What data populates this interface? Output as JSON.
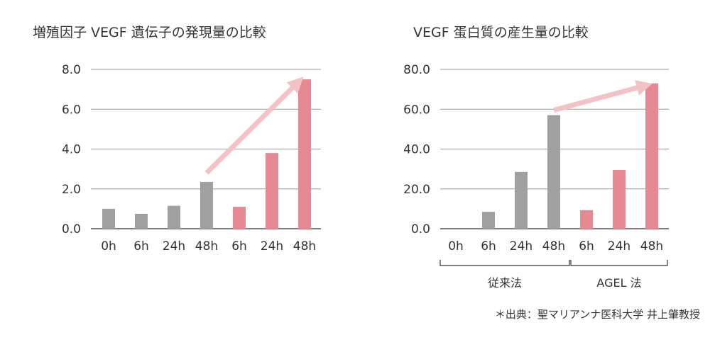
{
  "chart_data": [
    {
      "type": "bar",
      "title": "増殖因子 VEGF 遺伝子の発現量の比較",
      "categories": [
        "0h",
        "6h",
        "24h",
        "48h",
        "6h",
        "24h",
        "48h"
      ],
      "values": [
        1.0,
        0.75,
        1.15,
        2.35,
        1.1,
        3.8,
        7.5
      ],
      "bar_colors": [
        "#a0a0a0",
        "#a0a0a0",
        "#a0a0a0",
        "#a0a0a0",
        "#e58a92",
        "#e58a92",
        "#e58a92"
      ],
      "ylim": [
        0,
        8
      ],
      "yticks": [
        "0.0",
        "2.0",
        "4.0",
        "6.0",
        "8.0"
      ],
      "ytick_values": [
        0,
        2,
        4,
        6,
        8
      ],
      "grid": true,
      "trend_arrow": {
        "from": [
          3,
          2.8
        ],
        "to": [
          6,
          7.4
        ],
        "color": "#f2c2c6"
      }
    },
    {
      "type": "bar",
      "title": "VEGF 蛋白質の産生量の比較",
      "categories": [
        "0h",
        "6h",
        "24h",
        "48h",
        "6h",
        "24h",
        "48h"
      ],
      "values": [
        0,
        8.5,
        28.5,
        57,
        9.3,
        29.5,
        73
      ],
      "bar_colors": [
        "#a0a0a0",
        "#a0a0a0",
        "#a0a0a0",
        "#a0a0a0",
        "#e58a92",
        "#e58a92",
        "#e58a92"
      ],
      "ylim": [
        0,
        80
      ],
      "yticks": [
        "0.0",
        "20.0",
        "40.0",
        "60.0",
        "80.0"
      ],
      "ytick_values": [
        0,
        20,
        40,
        60,
        80
      ],
      "grid": true,
      "groups": [
        {
          "label": "従来法",
          "start": 0,
          "end": 3
        },
        {
          "label": "AGEL 法",
          "start": 4,
          "end": 6
        }
      ],
      "trend_arrow": {
        "from": [
          3,
          59.5
        ],
        "to": [
          6,
          72
        ],
        "color": "#f2c2c6"
      }
    }
  ],
  "footnote": "＊出典：聖マリアンナ医科大学 井上肇教授"
}
